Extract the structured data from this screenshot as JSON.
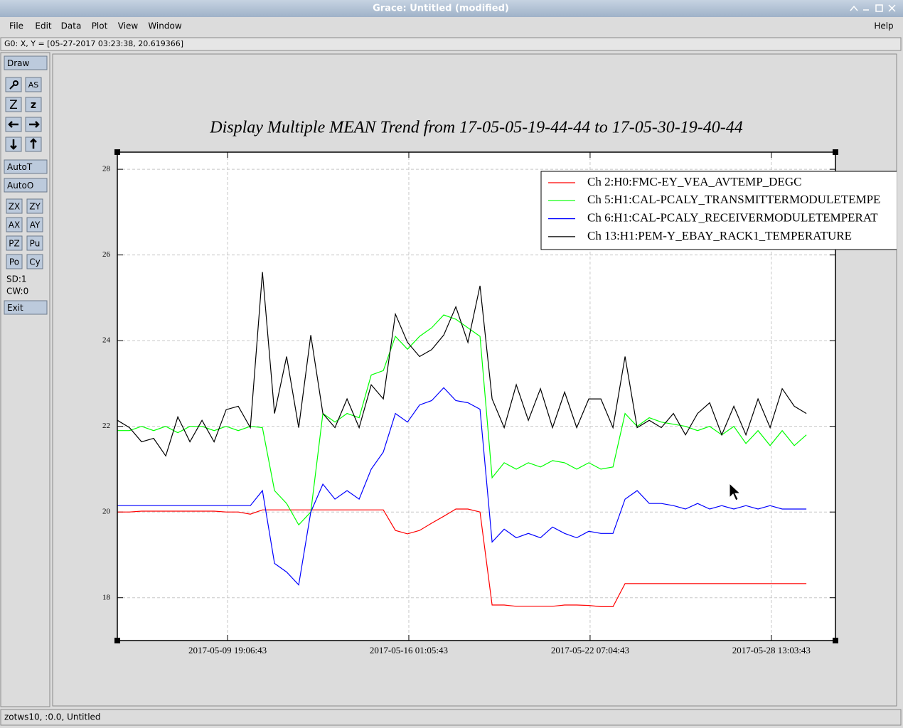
{
  "window": {
    "title": "Grace: Untitled (modified)"
  },
  "menu": [
    "File",
    "Edit",
    "Data",
    "Plot",
    "View",
    "Window"
  ],
  "help": "Help",
  "status": "G0: X, Y = [05-27-2017 03:23:38, 20.619366]",
  "toolbar": {
    "draw": "Draw",
    "icons": [
      "AS",
      "Z",
      "z"
    ],
    "auto": [
      "AutoT",
      "AutoO"
    ],
    "buttons": [
      "ZX",
      "ZY",
      "AX",
      "AY",
      "PZ",
      "Pu",
      "Po",
      "Cy"
    ],
    "info": [
      "SD:1",
      "CW:0"
    ],
    "exit": "Exit"
  },
  "footer": "zotws10, :0.0, Untitled",
  "chart_data": {
    "type": "line",
    "title": "Display Multiple MEAN Trend from 17-05-05-19-44-44 to 17-05-30-19-40-44",
    "x": [
      "2017-05-06 00:00:00",
      "2017-05-06 10:00:00",
      "2017-05-06 20:00:00",
      "2017-05-07 06:00:00",
      "2017-05-07 16:00:00",
      "2017-05-08 02:00:00",
      "2017-05-08 12:00:00",
      "2017-05-08 22:00:00",
      "2017-05-09 08:00:00",
      "2017-05-09 18:00:00",
      "2017-05-10 04:00:00",
      "2017-05-10 14:00:00",
      "2017-05-11 00:00:00",
      "2017-05-11 10:00:00",
      "2017-05-11 20:00:00",
      "2017-05-12 06:00:00",
      "2017-05-12 16:00:00",
      "2017-05-13 02:00:00",
      "2017-05-13 12:00:00",
      "2017-05-13 22:00:00",
      "2017-05-14 08:00:00",
      "2017-05-14 18:00:00",
      "2017-05-15 04:00:00",
      "2017-05-15 14:00:00",
      "2017-05-16 00:00:00",
      "2017-05-16 10:00:00",
      "2017-05-16 20:00:00",
      "2017-05-17 06:00:00",
      "2017-05-17 16:00:00",
      "2017-05-18 02:00:00",
      "2017-05-18 12:00:00",
      "2017-05-18 22:00:00",
      "2017-05-19 08:00:00",
      "2017-05-19 18:00:00",
      "2017-05-20 04:00:00",
      "2017-05-20 14:00:00",
      "2017-05-21 00:00:00",
      "2017-05-21 10:00:00",
      "2017-05-21 20:00:00",
      "2017-05-22 06:00:00",
      "2017-05-22 16:00:00",
      "2017-05-23 02:00:00",
      "2017-05-23 12:00:00",
      "2017-05-23 22:00:00",
      "2017-05-24 08:00:00",
      "2017-05-24 18:00:00",
      "2017-05-25 04:00:00",
      "2017-05-25 14:00:00",
      "2017-05-26 00:00:00",
      "2017-05-26 10:00:00",
      "2017-05-26 20:00:00",
      "2017-05-27 06:00:00",
      "2017-05-27 16:00:00",
      "2017-05-28 02:00:00",
      "2017-05-28 12:00:00",
      "2017-05-28 22:00:00",
      "2017-05-29 08:00:00",
      "2017-05-29 18:00:00"
    ],
    "series": [
      {
        "name": "Ch 2:H0:FMC-EY_VEA_AVTEMP_DEGC",
        "color": "#ff0000",
        "values": [
          20.0,
          20.0,
          20.02,
          20.02,
          20.02,
          20.02,
          20.02,
          20.02,
          20.02,
          20.0,
          20.0,
          19.95,
          20.05,
          20.05,
          20.05,
          20.05,
          20.05,
          20.05,
          20.05,
          20.05,
          20.05,
          20.05,
          20.05,
          19.57,
          19.49,
          19.57,
          19.74,
          19.9,
          20.07,
          20.07,
          20.0,
          17.83,
          17.83,
          17.8,
          17.8,
          17.8,
          17.8,
          17.83,
          17.83,
          17.82,
          17.79,
          17.79,
          18.33,
          18.33,
          18.33,
          18.33,
          18.33,
          18.33,
          18.33,
          18.33,
          18.33,
          18.33,
          18.33,
          18.33,
          18.33,
          18.33,
          18.33,
          18.33
        ]
      },
      {
        "name": "Ch 5:H1:CAL-PCALY_TRANSMITTERMODULETEMPE",
        "color": "#00ff00",
        "values": [
          21.9,
          21.9,
          22.0,
          21.9,
          22.0,
          21.85,
          22.0,
          22.0,
          21.9,
          22.0,
          21.9,
          22.0,
          21.97,
          20.5,
          20.2,
          19.7,
          20.0,
          22.3,
          22.1,
          22.3,
          22.2,
          23.2,
          23.3,
          24.1,
          23.8,
          24.1,
          24.3,
          24.6,
          24.5,
          24.3,
          24.1,
          20.8,
          21.15,
          21.0,
          21.15,
          21.05,
          21.2,
          21.15,
          21.0,
          21.15,
          21.0,
          21.05,
          22.3,
          22.0,
          22.2,
          22.1,
          22.05,
          22.0,
          21.9,
          22.0,
          21.8,
          22.0,
          21.6,
          21.9,
          21.55,
          21.9,
          21.55,
          21.8
        ]
      },
      {
        "name": "Ch 6:H1:CAL-PCALY_RECEIVERMODULETEMPERAT",
        "color": "#0000ff",
        "values": [
          20.15,
          20.15,
          20.15,
          20.15,
          20.15,
          20.15,
          20.15,
          20.15,
          20.15,
          20.15,
          20.15,
          20.15,
          20.5,
          18.8,
          18.6,
          18.3,
          20.0,
          20.65,
          20.3,
          20.5,
          20.3,
          21.0,
          21.4,
          22.3,
          22.1,
          22.5,
          22.6,
          22.9,
          22.6,
          22.55,
          22.4,
          19.3,
          19.6,
          19.4,
          19.5,
          19.4,
          19.65,
          19.5,
          19.4,
          19.55,
          19.5,
          19.5,
          20.3,
          20.5,
          20.2,
          20.2,
          20.15,
          20.07,
          20.2,
          20.07,
          20.15,
          20.07,
          20.15,
          20.07,
          20.15,
          20.07,
          20.07,
          20.07
        ]
      },
      {
        "name": "Ch 13:H1:PEM-Y_EBAY_RACK1_TEMPERATURE",
        "color": "#000000",
        "values": [
          22.14,
          21.97,
          21.64,
          21.72,
          21.31,
          22.22,
          21.64,
          22.14,
          21.64,
          22.39,
          22.47,
          21.97,
          25.6,
          22.3,
          23.63,
          21.97,
          24.13,
          22.3,
          21.97,
          22.64,
          21.97,
          22.97,
          22.64,
          24.62,
          23.96,
          23.63,
          23.79,
          24.13,
          24.79,
          23.96,
          25.28,
          22.64,
          21.97,
          22.97,
          22.14,
          22.88,
          21.97,
          22.8,
          21.97,
          22.64,
          22.64,
          21.97,
          23.63,
          21.97,
          22.14,
          21.97,
          22.3,
          21.8,
          22.3,
          22.55,
          21.8,
          22.47,
          21.8,
          22.64,
          21.97,
          22.88,
          22.47,
          22.3
        ]
      }
    ],
    "xlim": [
      "2017-05-05 23:55:00",
      "2017-05-30 18:05:00"
    ],
    "xticks": [
      "2017-05-09 19:06:43",
      "2017-05-16 01:05:43",
      "2017-05-22 07:04:43",
      "2017-05-28 13:03:43"
    ],
    "ylim": [
      17,
      28.4
    ],
    "yticks": [
      18,
      20,
      22,
      24,
      26,
      28
    ],
    "grid": true,
    "legend": "upper right"
  }
}
